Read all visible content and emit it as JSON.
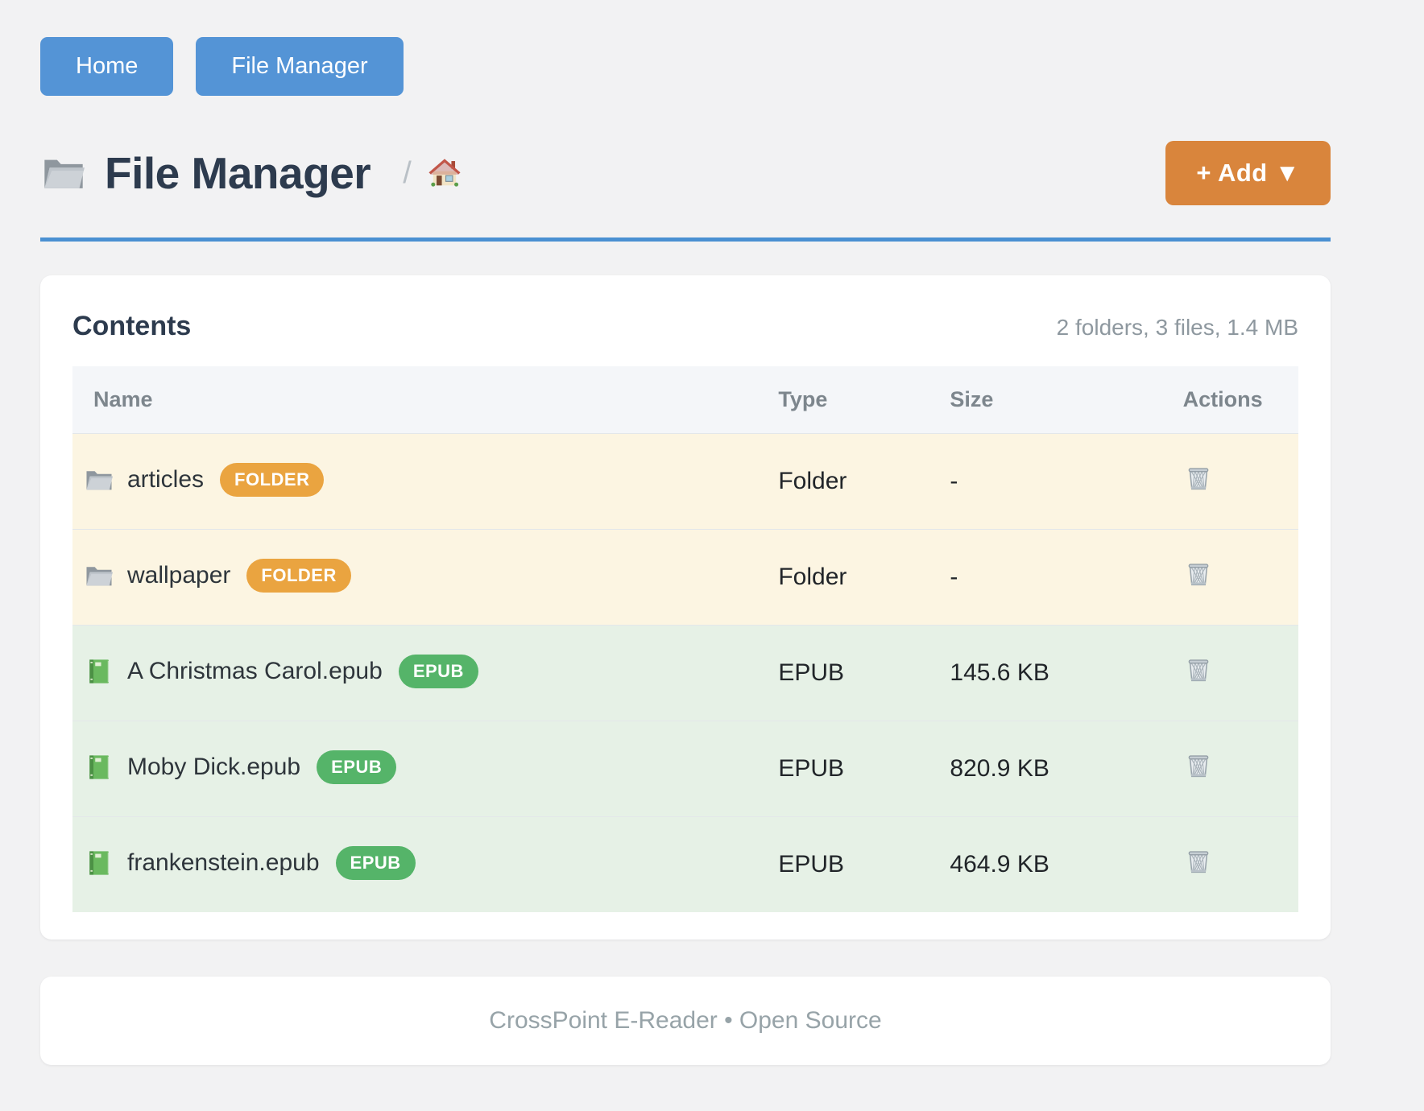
{
  "nav": {
    "home_label": "Home",
    "file_manager_label": "File Manager"
  },
  "header": {
    "title": "File Manager",
    "title_icon": "folder-icon",
    "breadcrumb_separator": "/",
    "breadcrumb_home_icon": "house-icon",
    "add_button_label": "+ Add ▼"
  },
  "contents": {
    "heading": "Contents",
    "summary": "2 folders, 3 files, 1.4 MB",
    "columns": [
      "Name",
      "Type",
      "Size",
      "Actions"
    ],
    "action_icon": "trash-icon",
    "rows": [
      {
        "name": "articles",
        "badge": "FOLDER",
        "kind": "folder",
        "icon": "folder-icon",
        "type": "Folder",
        "size": "-"
      },
      {
        "name": "wallpaper",
        "badge": "FOLDER",
        "kind": "folder",
        "icon": "folder-icon",
        "type": "Folder",
        "size": "-"
      },
      {
        "name": "A Christmas Carol.epub",
        "badge": "EPUB",
        "kind": "epub",
        "icon": "book-icon",
        "type": "EPUB",
        "size": "145.6 KB"
      },
      {
        "name": "Moby Dick.epub",
        "badge": "EPUB",
        "kind": "epub",
        "icon": "book-icon",
        "type": "EPUB",
        "size": "820.9 KB"
      },
      {
        "name": "frankenstein.epub",
        "badge": "EPUB",
        "kind": "epub",
        "icon": "book-icon",
        "type": "EPUB",
        "size": "464.9 KB"
      }
    ]
  },
  "footer": {
    "text": "CrossPoint E-Reader • Open Source"
  },
  "colors": {
    "page_bg": "#f2f2f3",
    "card_bg": "#ffffff",
    "nav_blue": "#5494d6",
    "add_orange": "#d9853c",
    "rule_blue": "#4a90d2",
    "badge_folder": "#eaa440",
    "badge_epub": "#55b469",
    "row_folder_bg": "#fcf5e2",
    "row_epub_bg": "#e6f1e6",
    "thead_bg": "#f4f6f9",
    "thead_text": "#7d868d",
    "title_text": "#2d3b4e",
    "name_text": "#2e353b",
    "body_text": "#212529",
    "muted_text": "#8e989f",
    "footer_text": "#97a3a8",
    "divider": "#e3e7ea"
  }
}
